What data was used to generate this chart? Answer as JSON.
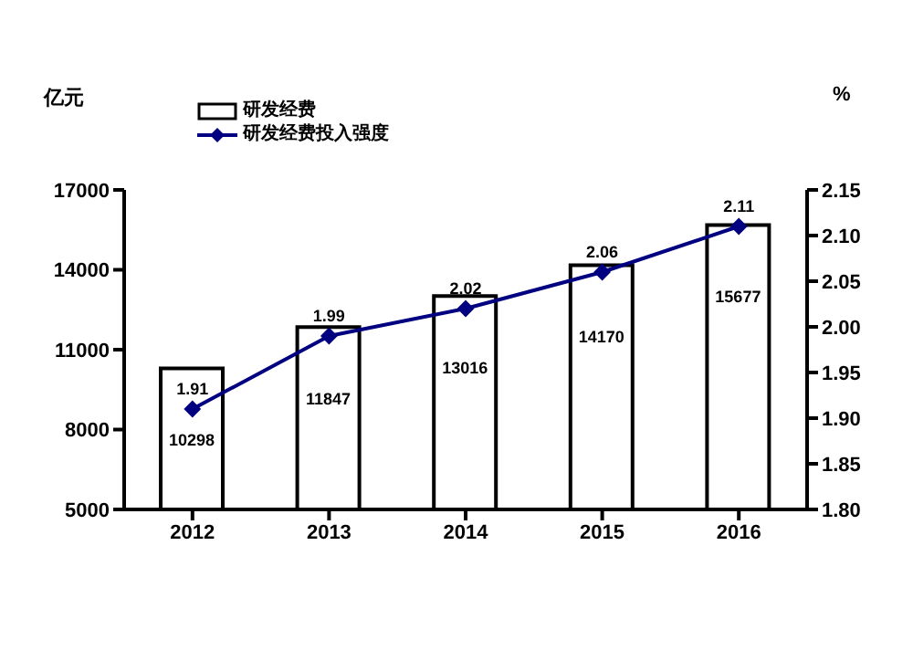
{
  "chart_data": {
    "type": "bar",
    "categories": [
      "2012",
      "2013",
      "2014",
      "2015",
      "2016"
    ],
    "ylabel": "亿元",
    "y2label": "%",
    "series": [
      {
        "name": "研发经费",
        "color": "#ffffff",
        "values": [
          10298,
          11847,
          13016,
          14170,
          15677
        ]
      },
      {
        "name": "研发经费投入强度",
        "type": "line",
        "axis": "y2",
        "color": "#000080",
        "values": [
          1.91,
          1.99,
          2.02,
          2.06,
          2.11
        ]
      }
    ],
    "ylim": [
      5000,
      17000
    ],
    "yticks": [
      5000,
      8000,
      11000,
      14000,
      17000
    ],
    "y2lim": [
      1.8,
      2.15
    ],
    "y2ticks": [
      {
        "value": 1.8,
        "label": "1.80"
      },
      {
        "value": 1.85,
        "label": "1.85"
      },
      {
        "value": 1.9,
        "label": "1.90"
      },
      {
        "value": 1.95,
        "label": "1.95"
      },
      {
        "value": 2.0,
        "label": "2.00"
      },
      {
        "value": 2.05,
        "label": "2.05"
      },
      {
        "value": 2.1,
        "label": "2.10"
      },
      {
        "value": 2.15,
        "label": "2.15"
      }
    ],
    "data_labels": true,
    "legend": "top left",
    "marker": "diamond",
    "line_style": "solid",
    "grid": false
  }
}
